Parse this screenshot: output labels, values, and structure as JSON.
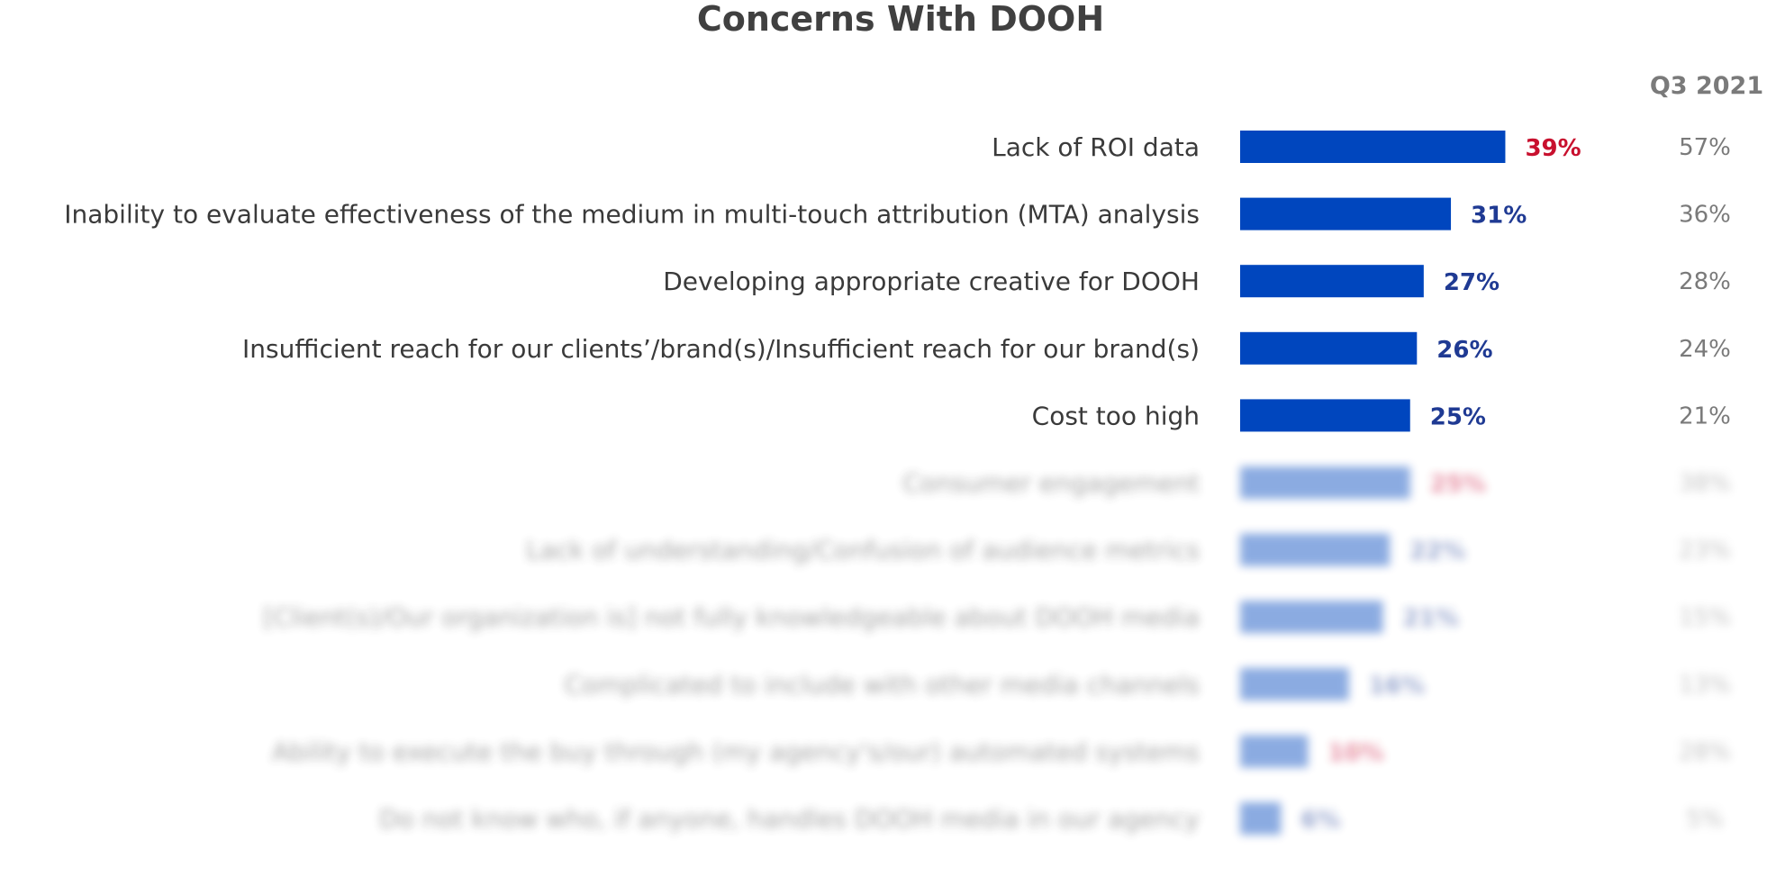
{
  "chart_data": {
    "type": "bar",
    "orientation": "horizontal",
    "title": "Concerns With DOOH",
    "comparison_header": "Q3 2021",
    "bar_color": "#0046be",
    "value_colors": {
      "highlight": "#c8102e",
      "default": "#1f3a93"
    },
    "xlim": [
      0,
      100
    ],
    "categories": [
      "Lack of ROI data",
      "Inability to evaluate effectiveness of the medium in multi-touch attribution (MTA) analysis",
      "Developing appropriate creative for DOOH",
      "Insufficient reach for our clients’/brand(s)/Insufficient reach for our brand(s)",
      "Cost too high",
      "Consumer engagement",
      "Lack of understanding/Confusion of audience metrics",
      "[Client(s)/Our organization is] not fully knowledgeable about DOOH media",
      "Complicated to include with other media channels",
      "Ability to execute the buy through (my agency's/our) automated systems",
      "Do not know who, if anyone, handles DOOH media in our agency"
    ],
    "values": [
      39,
      31,
      27,
      26,
      25,
      25,
      22,
      21,
      16,
      10,
      6
    ],
    "value_labels": [
      "39%",
      "31%",
      "27%",
      "26%",
      "25%",
      "25%",
      "22%",
      "21%",
      "16%",
      "10%",
      "6%"
    ],
    "value_highlight": [
      true,
      false,
      false,
      false,
      false,
      true,
      false,
      false,
      false,
      true,
      false
    ],
    "previous_values": [
      57,
      36,
      28,
      24,
      21,
      38,
      23,
      15,
      13,
      28,
      5
    ],
    "previous_labels": [
      "57%",
      "36%",
      "28%",
      "24%",
      "21%",
      "38%",
      "23%",
      "15%",
      "13%",
      "28%",
      "5%"
    ],
    "obscured": [
      false,
      false,
      false,
      false,
      false,
      true,
      true,
      true,
      true,
      true,
      true
    ]
  }
}
